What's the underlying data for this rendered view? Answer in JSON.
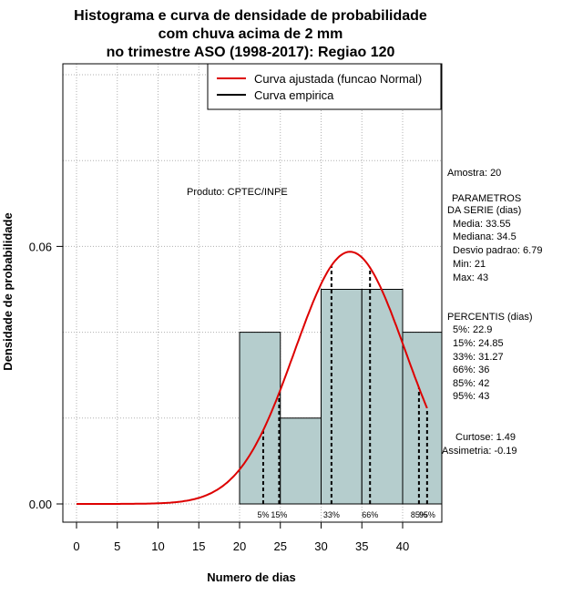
{
  "chart_data": {
    "type": "histogram",
    "title_lines": [
      "Histograma e curva de densidade de probabilidade",
      "com chuva acima de 2 mm",
      "no trimestre ASO (1998-2017): Regiao 120"
    ],
    "xlabel": "Numero de dias",
    "ylabel": "Densidade de probabilidade",
    "xlim": [
      -2,
      45
    ],
    "ylim": [
      0,
      0.1
    ],
    "x_ticks": [
      "0",
      "5",
      "10",
      "15",
      "20",
      "25",
      "30",
      "35",
      "40"
    ],
    "y_ticks": [
      "0.00",
      "0.06"
    ],
    "grid": true,
    "bins": [
      {
        "start": 20,
        "end": 25,
        "density": 0.04
      },
      {
        "start": 25,
        "end": 30,
        "density": 0.02
      },
      {
        "start": 30,
        "end": 35,
        "density": 0.05
      },
      {
        "start": 35,
        "end": 40,
        "density": 0.05
      },
      {
        "start": 40,
        "end": 45,
        "density": 0.04
      }
    ],
    "normal_curve": {
      "name": "Curva ajustada (funcao Normal)",
      "mean": 33.55,
      "sd": 6.79,
      "x_range": [
        0,
        43
      ],
      "color": "#dd0000"
    },
    "empirical_curve": {
      "name": "Curva empirica",
      "color": "#000000"
    },
    "legend": {
      "position": "top-right",
      "entries": [
        {
          "label": "Curva ajustada (funcao Normal)",
          "color": "#dd0000"
        },
        {
          "label": "Curva empirica",
          "color": "#000000"
        }
      ]
    },
    "percentile_lines": [
      {
        "label": "5%",
        "value": 22.9
      },
      {
        "label": "15%",
        "value": 24.85
      },
      {
        "label": "33%",
        "value": 31.27
      },
      {
        "label": "66%",
        "value": 36
      },
      {
        "label": "85%",
        "value": 42
      },
      {
        "label": "95%",
        "value": 43
      }
    ],
    "annotations": {
      "produto": "Produto: CPTEC/INPE",
      "amostra": "Amostra: 20",
      "param_title_1": "PARAMETROS",
      "param_title_2": "DA SERIE (dias)",
      "media": "Media: 33.55",
      "mediana": "Mediana: 34.5",
      "desvio": "Desvio padrao: 6.79",
      "min": "Min: 21",
      "max": "Max: 43",
      "perc_title": "PERCENTIS (dias)",
      "p5": "5%: 22.9",
      "p15": "15%: 24.85",
      "p33": "33%: 31.27",
      "p66": "66%: 36",
      "p85": "85%: 42",
      "p95": "95%: 43",
      "curtose": "Curtose: 1.49",
      "assimetria": "Assimetria: -0.19"
    },
    "colors": {
      "bar_fill": "#b5cdcd",
      "normal": "#dd0000",
      "grid": "#b0b0b0"
    }
  }
}
